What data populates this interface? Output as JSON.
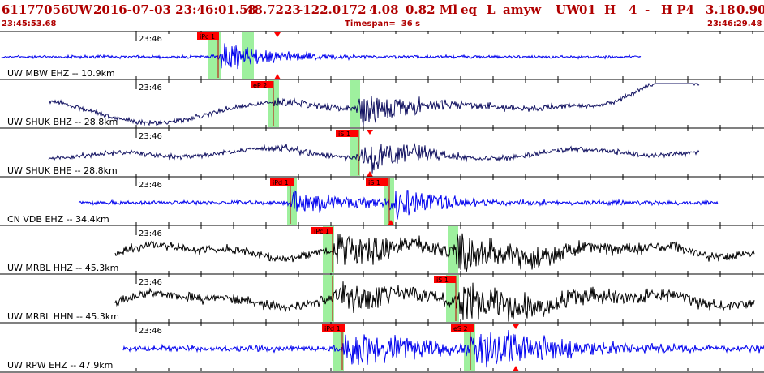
{
  "header": {
    "event_id": "61177056",
    "network": "UW",
    "datetime": "2016-07-03 23:46:01.58",
    "lat": "48.7223",
    "lon": "-122.0172",
    "depth": "4.08",
    "magnitude": "0.82 Ml",
    "etype": "eq",
    "flag": "L",
    "author": "amyw",
    "net2": "UW",
    "version": "01",
    "h": "H",
    "num": "4",
    "dash": "-",
    "hp": "H P4",
    "v1": "3.18",
    "v2": "0.90",
    "start_time": "23:45:53.68",
    "timespan": "Timespan=  36 s",
    "end_time": "23:46:29.48"
  },
  "colors": {
    "header_text": "#b00000",
    "pick_flag": "#ff0000",
    "pick_window": "#9ef09e",
    "trace_blue": "#0000ee",
    "trace_navy": "#101060",
    "trace_black": "#000000"
  },
  "channels": [
    {
      "label": "UW MBW EHZ -- 10.9km",
      "time_label": "23:46",
      "color": "trace_blue",
      "picks": [
        "iPc 1"
      ],
      "marker": "red-triangle"
    },
    {
      "label": "UW SHUK BHZ -- 28.8km",
      "time_label": "23:46",
      "color": "trace_navy",
      "picks": [
        "eP 2"
      ],
      "marker": "red-triangle"
    },
    {
      "label": "UW SHUK BHE -- 28.8km",
      "time_label": "23:46",
      "color": "trace_navy",
      "picks": [
        "iS 1"
      ],
      "marker": "red-triangle"
    },
    {
      "label": "CN VDB EHZ -- 34.4km",
      "time_label": "23:46",
      "color": "trace_blue",
      "picks": [
        "iPd 1",
        "iS 1"
      ],
      "marker": "red-triangle"
    },
    {
      "label": "UW MRBL HHZ -- 45.3km",
      "time_label": "23:46",
      "color": "trace_black",
      "picks": [
        "iPc 1"
      ],
      "marker": "none"
    },
    {
      "label": "UW MRBL HHN -- 45.3km",
      "time_label": "23:46",
      "color": "trace_black",
      "picks": [
        "iS 1"
      ],
      "marker": "none"
    },
    {
      "label": "UW RPW EHZ -- 47.9km",
      "time_label": "23:46",
      "color": "trace_blue",
      "picks": [
        "iPd 1",
        "eS 2"
      ],
      "marker": "red-triangle"
    }
  ]
}
